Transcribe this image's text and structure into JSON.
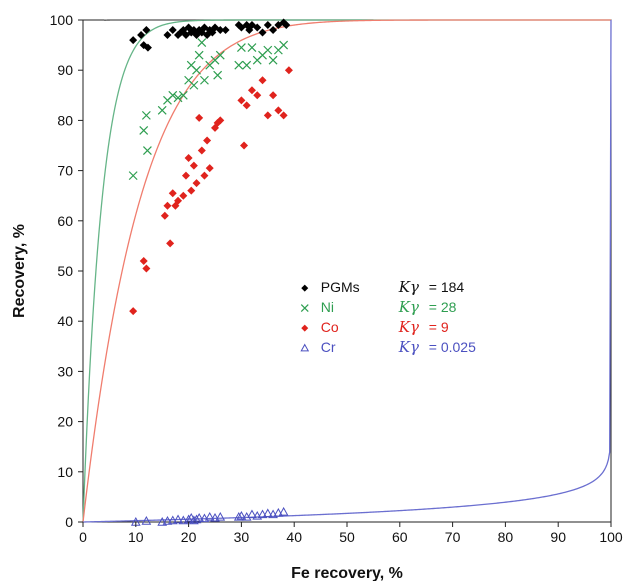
{
  "chart_data": {
    "type": "scatter",
    "xlabel": "Fe recovery, %",
    "ylabel": "Recovery, %",
    "xlim": [
      0,
      100
    ],
    "ylim": [
      0,
      100
    ],
    "xticks": [
      "0",
      "10",
      "20",
      "30",
      "40",
      "50",
      "60",
      "70",
      "80",
      "90",
      "100"
    ],
    "yticks": [
      "0",
      "10",
      "20",
      "30",
      "40",
      "50",
      "60",
      "70",
      "80",
      "90",
      "100"
    ],
    "grid": false,
    "legend_position": "center",
    "series": [
      {
        "name": "PGMs",
        "k_label": "Kγ",
        "k_value": "= 184",
        "k": 184,
        "color": "#000000",
        "curve_color": "#555555",
        "marker": "diamond",
        "curve_x_range": [
          4,
          55
        ],
        "points": [
          [
            9.5,
            96
          ],
          [
            11,
            97
          ],
          [
            11.5,
            95
          ],
          [
            12,
            98
          ],
          [
            12.3,
            94.5
          ],
          [
            16,
            97
          ],
          [
            17,
            98
          ],
          [
            18,
            97
          ],
          [
            18.5,
            97.5
          ],
          [
            19,
            98
          ],
          [
            19.5,
            97
          ],
          [
            20,
            98.5
          ],
          [
            20.5,
            97.5
          ],
          [
            21,
            98
          ],
          [
            21.5,
            97
          ],
          [
            22,
            98
          ],
          [
            22.5,
            97.5
          ],
          [
            23,
            98.5
          ],
          [
            23.5,
            97
          ],
          [
            24,
            98
          ],
          [
            24.5,
            97.5
          ],
          [
            25,
            98.5
          ],
          [
            26,
            98
          ],
          [
            27,
            98
          ],
          [
            29.5,
            99
          ],
          [
            30,
            98.5
          ],
          [
            31,
            99
          ],
          [
            31.5,
            98
          ],
          [
            32,
            99
          ],
          [
            33,
            98.5
          ],
          [
            34,
            97.5
          ],
          [
            35,
            99
          ],
          [
            36,
            98
          ],
          [
            37,
            99
          ],
          [
            38,
            99.5
          ],
          [
            38.5,
            99
          ]
        ]
      },
      {
        "name": "Ni",
        "k_label": "Kγ",
        "k_value": "= 28",
        "k": 28,
        "color": "#2e9e50",
        "curve_color": "#66b588",
        "marker": "x",
        "curve_x_range": [
          0,
          100
        ],
        "points": [
          [
            9.5,
            69
          ],
          [
            11.5,
            78
          ],
          [
            12,
            81
          ],
          [
            12.2,
            74
          ],
          [
            15,
            82
          ],
          [
            16,
            84
          ],
          [
            17,
            85
          ],
          [
            18,
            84.5
          ],
          [
            19,
            85
          ],
          [
            20,
            88
          ],
          [
            20.5,
            91
          ],
          [
            21,
            87
          ],
          [
            21.5,
            90
          ],
          [
            22,
            93
          ],
          [
            22.5,
            95.5
          ],
          [
            23,
            88
          ],
          [
            24,
            91
          ],
          [
            25,
            92
          ],
          [
            25.5,
            89
          ],
          [
            26,
            93
          ],
          [
            29.5,
            91
          ],
          [
            30,
            94.5
          ],
          [
            31,
            91
          ],
          [
            32,
            94.5
          ],
          [
            33,
            92
          ],
          [
            34,
            93
          ],
          [
            35,
            94
          ],
          [
            36,
            92
          ],
          [
            37,
            94
          ],
          [
            38,
            95
          ]
        ]
      },
      {
        "name": "Co",
        "k_label": "Kγ",
        "k_value": "= 9",
        "k": 9,
        "color": "#e0231d",
        "curve_color": "#f07d6e",
        "marker": "diamond",
        "curve_x_range": [
          0,
          100
        ],
        "points": [
          [
            9.5,
            42
          ],
          [
            11.5,
            52
          ],
          [
            12,
            50.5
          ],
          [
            15.5,
            61
          ],
          [
            16,
            63
          ],
          [
            16.5,
            55.5
          ],
          [
            17,
            65.5
          ],
          [
            17.5,
            63
          ],
          [
            18,
            64
          ],
          [
            19,
            65
          ],
          [
            19.5,
            69
          ],
          [
            20,
            72.5
          ],
          [
            20.5,
            66
          ],
          [
            21,
            71
          ],
          [
            21.5,
            67.5
          ],
          [
            22,
            80.5
          ],
          [
            22.5,
            74
          ],
          [
            23,
            69
          ],
          [
            23.5,
            76
          ],
          [
            24,
            70.5
          ],
          [
            25,
            78.5
          ],
          [
            25.5,
            79.5
          ],
          [
            26,
            80
          ],
          [
            30,
            84
          ],
          [
            30.5,
            75
          ],
          [
            31,
            83
          ],
          [
            32,
            86
          ],
          [
            33,
            85
          ],
          [
            34,
            88
          ],
          [
            35,
            81
          ],
          [
            36,
            85
          ],
          [
            37,
            82
          ],
          [
            38,
            81
          ],
          [
            39,
            90
          ]
        ]
      },
      {
        "name": "Cr",
        "k_label": "Kγ",
        "k_value": "= 0.025",
        "k": 0.025,
        "color": "#4b50c0",
        "curve_color": "#6b6fd0",
        "marker": "triangle-open",
        "curve_x_range": [
          0,
          100
        ],
        "points": [
          [
            10,
            0
          ],
          [
            12,
            0.2
          ],
          [
            15,
            0
          ],
          [
            16,
            0.2
          ],
          [
            17,
            0.3
          ],
          [
            18,
            0.5
          ],
          [
            19,
            0.3
          ],
          [
            20,
            0.5
          ],
          [
            20.5,
            0.8
          ],
          [
            21,
            0.3
          ],
          [
            21.5,
            0.5
          ],
          [
            22,
            0.8
          ],
          [
            23,
            0.7
          ],
          [
            24,
            1
          ],
          [
            25,
            0.8
          ],
          [
            26,
            1
          ],
          [
            29.5,
            1
          ],
          [
            30,
            1.2
          ],
          [
            31,
            1
          ],
          [
            32,
            1.5
          ],
          [
            33,
            1.2
          ],
          [
            34,
            1.5
          ],
          [
            35,
            1.7
          ],
          [
            36,
            1.5
          ],
          [
            37,
            1.8
          ],
          [
            38,
            2
          ]
        ]
      }
    ]
  }
}
